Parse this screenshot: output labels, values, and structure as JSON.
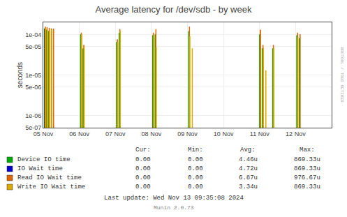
{
  "chart_data": {
    "type": "bar",
    "title": "Average latency for /dev/sdb - by week",
    "ylabel": "seconds",
    "log": "y",
    "grid": true,
    "x": [
      0.05,
      0.1,
      0.16,
      0.22,
      0.28,
      1.05,
      1.12,
      2.05,
      2.12,
      3.05,
      3.12,
      4.05,
      4.12,
      6.02,
      6.09,
      6.16,
      6.38,
      7.05,
      7.12
    ],
    "xlim": [
      0,
      8
    ],
    "xticks": [
      {
        "value": 0,
        "label": "05 Nov"
      },
      {
        "value": 1,
        "label": "06 Nov"
      },
      {
        "value": 2,
        "label": "07 Nov"
      },
      {
        "value": 3,
        "label": "08 Nov"
      },
      {
        "value": 4,
        "label": "09 Nov"
      },
      {
        "value": 5,
        "label": "10 Nov"
      },
      {
        "value": 6,
        "label": "11 Nov"
      },
      {
        "value": 7,
        "label": "12 Nov"
      }
    ],
    "ylim": [
      5e-07,
      0.0002
    ],
    "yticks": [
      {
        "value": 5e-07,
        "label": "5e-07"
      },
      {
        "value": 1e-06,
        "label": "1e-06"
      },
      {
        "value": 5e-06,
        "label": "5e-06"
      },
      {
        "value": 1e-05,
        "label": "1e-05"
      },
      {
        "value": 5e-05,
        "label": "5e-05"
      },
      {
        "value": 0.0001,
        "label": "1e-04"
      }
    ],
    "legend_headers": [
      "Cur:",
      "Min:",
      "Avg:",
      "Max:"
    ],
    "series": [
      {
        "name": "Device IO time",
        "color": "#00aa00",
        "values": [
          0.00014,
          0.00013,
          0.00012,
          null,
          null,
          0.0001,
          4.5e-05,
          6.5e-05,
          0.00011,
          9.5e-05,
          0.0001,
          0.00012,
          null,
          0.0001,
          4.5e-05,
          null,
          4.5e-05,
          9.5e-05,
          8e-05
        ],
        "legend_values": [
          "0.00",
          "0.00",
          "4.46u",
          "869.33u"
        ]
      },
      {
        "name": "IO Wait time",
        "color": "#0000cc",
        "values": [
          0.000135,
          null,
          null,
          null,
          null,
          null,
          null,
          null,
          null,
          null,
          null,
          null,
          null,
          null,
          null,
          null,
          null,
          null,
          null
        ],
        "legend_values": [
          "0.00",
          "0.00",
          "4.72u",
          "869.33u"
        ]
      },
      {
        "name": "Read IO Wait time",
        "color": "#dd6600",
        "values": [
          0.000155,
          0.00015,
          0.000145,
          0.00014,
          0.000138,
          0.00011,
          5.5e-05,
          7.5e-05,
          0.000135,
          0.00011,
          0.000135,
          0.000155,
          null,
          0.00013,
          5.5e-05,
          null,
          5.5e-05,
          0.00011,
          0.0001
        ],
        "legend_values": [
          "0.00",
          "0.00",
          "6.87u",
          "976.67u"
        ]
      },
      {
        "name": "Write IO Wait time",
        "color": "#ddaa00",
        "values": [
          0.00014,
          0.00013,
          0.00012,
          0.000135,
          null,
          0.0001,
          5e-05,
          6.5e-05,
          0.00012,
          9.5e-05,
          4.8e-05,
          9e-05,
          4.5e-05,
          null,
          4.5e-05,
          1.3e-05,
          4.5e-05,
          8.5e-05,
          null
        ],
        "legend_values": [
          "0.00",
          "0.00",
          "3.34u",
          "869.33u"
        ]
      }
    ],
    "annotations": [
      "Last update: Wed Nov 13 09:35:08 2024",
      "Munin 2.0.73",
      "RRDTOOL / TOBI OETIKER"
    ]
  }
}
